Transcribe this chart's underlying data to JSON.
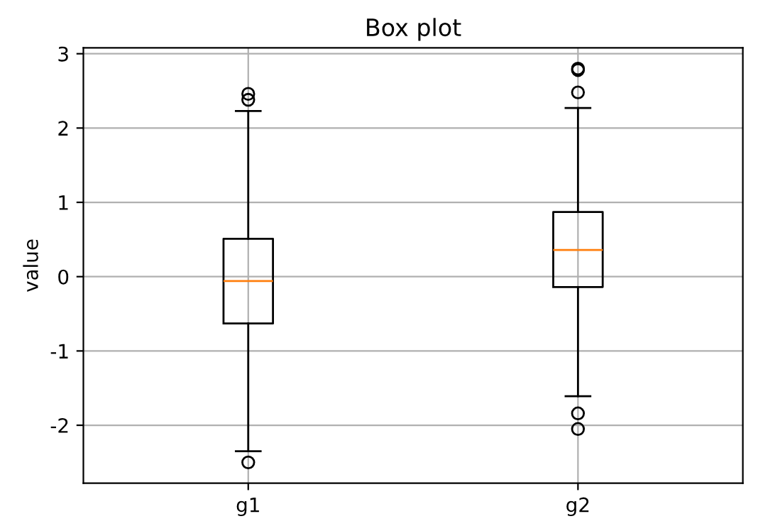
{
  "chart_data": {
    "type": "box",
    "title": "Box plot",
    "ylabel": "value",
    "categories": [
      "g1",
      "g2"
    ],
    "boxes": [
      {
        "low": -2.35,
        "q1": -0.63,
        "median": -0.06,
        "q3": 0.51,
        "high": 2.23,
        "outliers": [
          2.46,
          2.38,
          -2.5
        ]
      },
      {
        "low": -1.61,
        "q1": -0.14,
        "median": 0.36,
        "q3": 0.87,
        "high": 2.27,
        "outliers": [
          2.8,
          2.78,
          2.48,
          -1.84,
          -2.05
        ]
      }
    ],
    "ylim": [
      -2.78,
      3.08
    ],
    "yticks": [
      -2,
      -1,
      0,
      1,
      2,
      3
    ],
    "grid": true
  }
}
